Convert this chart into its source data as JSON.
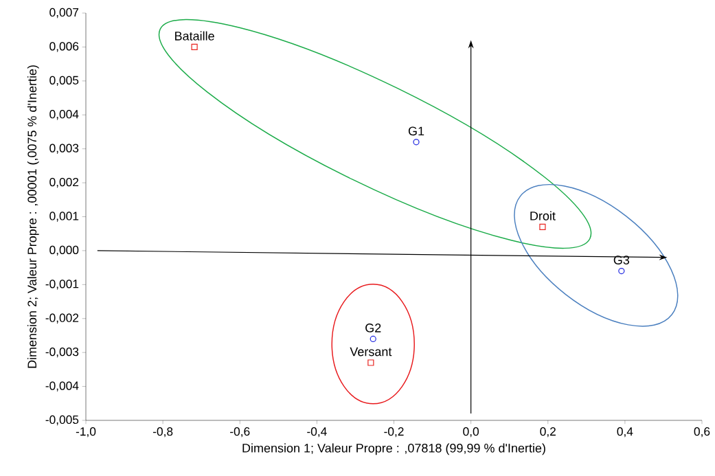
{
  "chart_data": {
    "type": "scatter",
    "xlabel": "Dimension 1; Valeur Propre : ,07818 (99,99 % d'Inertie)",
    "ylabel": "Dimension 2; Valeur Propre : ,00001 (,0075 % d'Inertie)",
    "xlim": [
      -1.0,
      0.6
    ],
    "ylim": [
      -0.005,
      0.007
    ],
    "xticks": [
      {
        "value": -1.0,
        "label": "-1,0"
      },
      {
        "value": -0.8,
        "label": "-0,8"
      },
      {
        "value": -0.6,
        "label": "-0,6"
      },
      {
        "value": -0.4,
        "label": "-0,4"
      },
      {
        "value": -0.2,
        "label": "-0,2"
      },
      {
        "value": 0.0,
        "label": "0,0"
      },
      {
        "value": 0.2,
        "label": "0,2"
      },
      {
        "value": 0.4,
        "label": "0,4"
      },
      {
        "value": 0.6,
        "label": "0,6"
      }
    ],
    "yticks": [
      {
        "value": -0.005,
        "label": "-0,005"
      },
      {
        "value": -0.004,
        "label": "-0,004"
      },
      {
        "value": -0.003,
        "label": "-0,003"
      },
      {
        "value": -0.002,
        "label": "-0,002"
      },
      {
        "value": -0.001,
        "label": "-0,001"
      },
      {
        "value": 0.0,
        "label": "0,000"
      },
      {
        "value": 0.001,
        "label": "0,001"
      },
      {
        "value": 0.002,
        "label": "0,002"
      },
      {
        "value": 0.003,
        "label": "0,003"
      },
      {
        "value": 0.004,
        "label": "0,004"
      },
      {
        "value": 0.005,
        "label": "0,005"
      },
      {
        "value": 0.006,
        "label": "0,006"
      },
      {
        "value": 0.007,
        "label": "0,007"
      }
    ],
    "series": [
      {
        "color": "#e8231f",
        "marker": "square",
        "x": [
          -0.718,
          0.186,
          -0.26
        ],
        "values": [
          0.006,
          0.0007,
          -0.0033
        ]
      },
      {
        "color": "#2028e0",
        "marker": "circle",
        "x": [
          -0.142,
          -0.254,
          0.391
        ],
        "values": [
          0.0032,
          -0.0026,
          -0.0006
        ]
      }
    ],
    "annotations": [
      {
        "text": "Bataille",
        "x": -0.718,
        "y": 0.006
      },
      {
        "text": "Droit",
        "x": 0.186,
        "y": 0.0007
      },
      {
        "text": "Versant",
        "x": -0.26,
        "y": -0.0033
      },
      {
        "text": "G1",
        "x": -0.142,
        "y": 0.0032
      },
      {
        "text": "G2",
        "x": -0.254,
        "y": -0.0026
      },
      {
        "text": "G3",
        "x": 0.391,
        "y": -0.0006
      }
    ]
  }
}
